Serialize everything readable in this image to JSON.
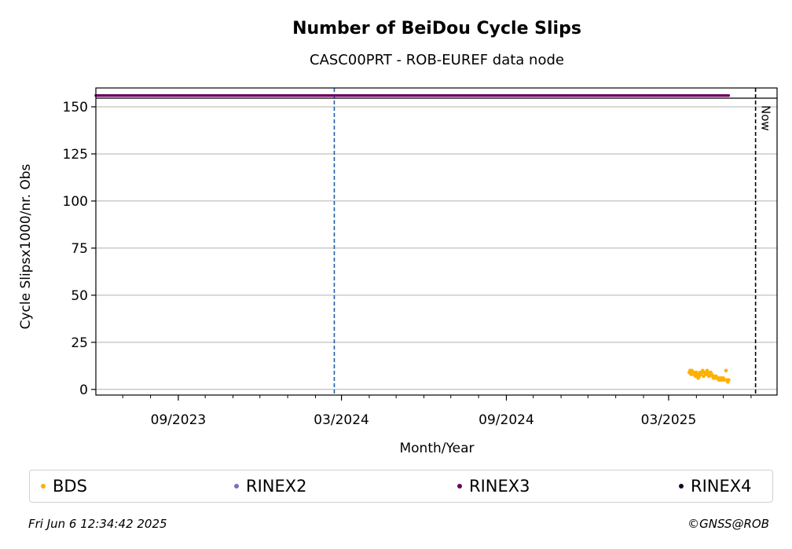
{
  "chart_data": {
    "type": "scatter",
    "title": "Number of BeiDou Cycle Slips",
    "subtitle": "CASC00PRT - ROB-EUREF data node",
    "xlabel": "Month/Year",
    "ylabel": "Cycle Slipsx1000/nr. Obs",
    "xlim": [
      "2023-06-01",
      "2025-06-30"
    ],
    "ylim": [
      -3,
      160
    ],
    "yticks": [
      0,
      25,
      50,
      75,
      100,
      125,
      150
    ],
    "xticks": [
      {
        "date": "2023-09-01",
        "label": "09/2023"
      },
      {
        "date": "2024-03-01",
        "label": "03/2024"
      },
      {
        "date": "2024-09-01",
        "label": "09/2024"
      },
      {
        "date": "2025-03-01",
        "label": "03/2025"
      }
    ],
    "grid": "horizontal",
    "legend_position": "bottom",
    "now_line": {
      "date": "2025-06-06",
      "label": "Now"
    },
    "event_line": {
      "date": "2024-02-22",
      "color": "#1f5fa8"
    },
    "series": [
      {
        "name": "BDS",
        "color": "#ffb000",
        "points": [
          [
            "2025-03-24",
            9
          ],
          [
            "2025-03-25",
            10
          ],
          [
            "2025-03-26",
            8
          ],
          [
            "2025-03-27",
            10
          ],
          [
            "2025-03-28",
            9
          ],
          [
            "2025-03-29",
            8
          ],
          [
            "2025-03-30",
            9
          ],
          [
            "2025-03-31",
            7
          ],
          [
            "2025-04-01",
            9
          ],
          [
            "2025-04-02",
            8
          ],
          [
            "2025-04-03",
            6
          ],
          [
            "2025-04-04",
            7
          ],
          [
            "2025-04-05",
            9
          ],
          [
            "2025-04-06",
            8
          ],
          [
            "2025-04-07",
            9
          ],
          [
            "2025-04-08",
            10
          ],
          [
            "2025-04-09",
            7
          ],
          [
            "2025-04-10",
            9
          ],
          [
            "2025-04-11",
            8
          ],
          [
            "2025-04-12",
            8
          ],
          [
            "2025-04-13",
            10
          ],
          [
            "2025-04-14",
            9
          ],
          [
            "2025-04-15",
            7
          ],
          [
            "2025-04-16",
            8
          ],
          [
            "2025-04-17",
            9
          ],
          [
            "2025-04-18",
            8
          ],
          [
            "2025-04-19",
            7
          ],
          [
            "2025-04-20",
            6
          ],
          [
            "2025-04-21",
            7
          ],
          [
            "2025-04-22",
            6
          ],
          [
            "2025-04-23",
            7
          ],
          [
            "2025-04-24",
            6
          ],
          [
            "2025-04-25",
            6
          ],
          [
            "2025-04-26",
            5
          ],
          [
            "2025-04-27",
            6
          ],
          [
            "2025-04-28",
            5
          ],
          [
            "2025-04-29",
            6
          ],
          [
            "2025-04-30",
            5
          ],
          [
            "2025-05-01",
            6
          ],
          [
            "2025-05-02",
            5
          ],
          [
            "2025-05-04",
            10
          ],
          [
            "2025-05-05",
            5
          ],
          [
            "2025-05-06",
            4
          ],
          [
            "2025-05-07",
            5
          ]
        ]
      },
      {
        "name": "RINEX2",
        "color": "#7b6fb5",
        "points": []
      },
      {
        "name": "RINEX3",
        "color": "#6a0060",
        "constant_value": 156,
        "range": [
          "2023-06-01",
          "2025-05-07"
        ]
      },
      {
        "name": "RINEX4",
        "color": "#1a0020",
        "points": []
      }
    ]
  },
  "footer": {
    "timestamp": "Fri Jun  6 12:34:42 2025",
    "credit": "©GNSS@ROB"
  }
}
